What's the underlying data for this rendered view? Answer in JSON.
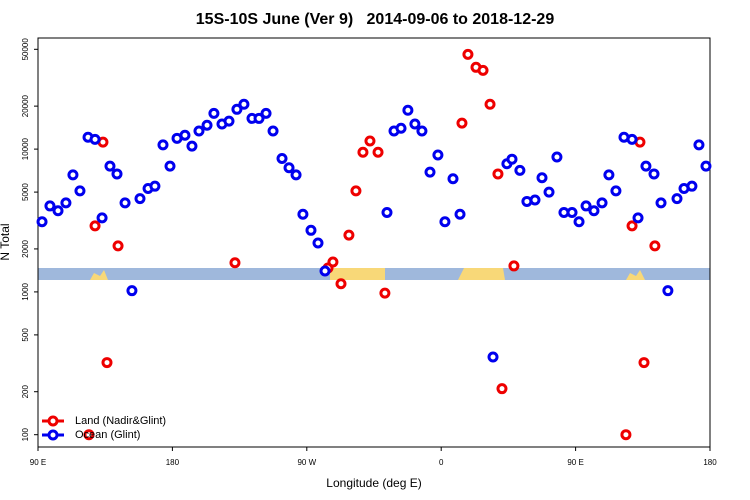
{
  "chart_data": {
    "type": "scatter",
    "title": "15S-10S June (Ver 9)   2014-09-06 to 2018-12-29",
    "x_label": "Longitude (deg E)",
    "y_label": "N Total",
    "log_y": true,
    "legend": "bottom-left",
    "xlim": [
      90,
      540
    ],
    "xticks": [
      {
        "value": 90,
        "label": "90 E"
      },
      {
        "value": 180,
        "label": "180"
      },
      {
        "value": 270,
        "label": "90 W"
      },
      {
        "value": 360,
        "label": "0"
      },
      {
        "value": 450,
        "label": "90 E"
      },
      {
        "value": 540,
        "label": "180"
      }
    ],
    "ylim": [
      82,
      60000
    ],
    "yticks": [
      100,
      200,
      500,
      1000,
      2000,
      5000,
      10000,
      20000,
      50000
    ],
    "series": [
      {
        "name": "Land (Nadir&Glint)",
        "color": "#ee0000",
        "x": [
          124.1,
          128.2,
          133.5,
          136.2,
          143.6,
          221.9,
          284.2,
          287.5,
          292.9,
          298.2,
          302.9,
          307.6,
          312.3,
          317.7,
          322.3,
          373.9,
          377.9,
          383.3,
          388.0,
          392.7,
          398.0,
          400.7,
          408.7,
          483.7,
          487.8,
          493.1,
          495.8,
          503.1
        ],
        "values": [
          100,
          2900,
          11200,
          320,
          2100,
          1600,
          1470,
          1620,
          1140,
          2500,
          5100,
          9500,
          11400,
          9500,
          980,
          15200,
          46100,
          37400,
          35600,
          20600,
          6700,
          210,
          1520,
          100,
          2900,
          11200,
          320,
          2100
        ]
      },
      {
        "name": "Ocean (Glint)",
        "color": "#0000ee",
        "x": [
          92.7,
          98.0,
          103.4,
          108.7,
          113.4,
          118.1,
          123.5,
          128.2,
          132.9,
          138.2,
          142.9,
          148.3,
          152.9,
          158.3,
          163.7,
          168.3,
          173.7,
          178.4,
          183.1,
          188.4,
          193.1,
          197.8,
          203.2,
          207.8,
          213.2,
          217.9,
          223.2,
          227.9,
          233.3,
          238.0,
          242.7,
          247.4,
          253.4,
          258.1,
          262.8,
          267.4,
          272.8,
          277.5,
          282.2,
          323.7,
          328.4,
          333.1,
          337.7,
          342.4,
          347.1,
          352.5,
          357.8,
          362.5,
          367.9,
          372.6,
          394.7,
          404.0,
          407.4,
          412.7,
          417.4,
          422.8,
          427.5,
          432.2,
          437.5,
          442.2,
          447.6,
          452.3,
          457.0,
          462.3,
          467.7,
          472.3,
          477.0,
          482.4,
          487.8,
          491.8,
          497.1,
          502.5,
          507.2,
          511.8,
          517.9,
          522.6,
          527.9,
          532.6,
          537.3
        ],
        "values": [
          3100,
          4000,
          3700,
          4200,
          6600,
          5100,
          12100,
          11700,
          3300,
          7600,
          6700,
          4200,
          1020,
          4500,
          5300,
          5500,
          10700,
          7600,
          11900,
          12500,
          10500,
          13400,
          14700,
          17800,
          15000,
          15700,
          19000,
          20600,
          16400,
          16400,
          17800,
          13400,
          8600,
          7400,
          6600,
          3500,
          2700,
          2200,
          1400,
          3600,
          13400,
          14000,
          18700,
          15000,
          13400,
          6900,
          9100,
          3100,
          6200,
          3500,
          350,
          7900,
          8500,
          7100,
          4300,
          4400,
          6300,
          5000,
          8800,
          3600,
          3600,
          3100,
          4000,
          3700,
          4200,
          6600,
          5100,
          12100,
          11700,
          3300,
          7600,
          6700,
          4200,
          1020,
          4500,
          5300,
          5500,
          10700,
          7600
        ]
      }
    ]
  }
}
